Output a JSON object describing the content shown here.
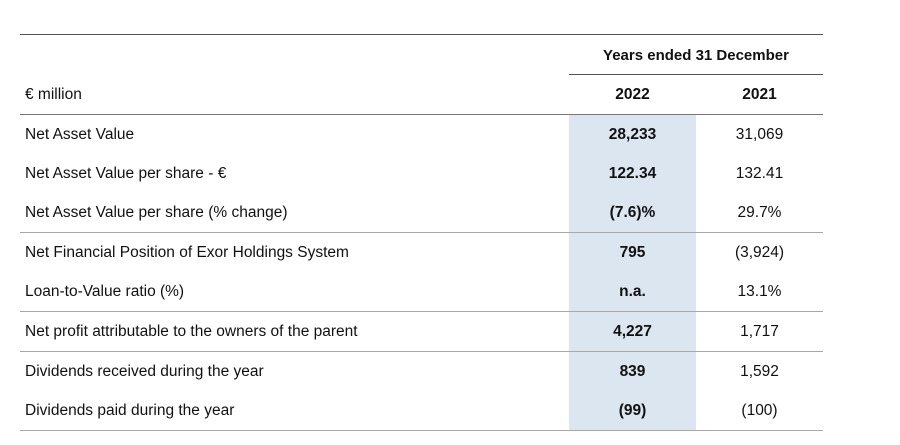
{
  "table": {
    "period_header": "Years ended 31 December",
    "unit_label": "€ million",
    "col_2022": "2022",
    "col_2021": "2021",
    "rows": [
      {
        "label": "Net Asset Value",
        "v2022": "28,233",
        "v2021": "31,069"
      },
      {
        "label": "Net Asset Value per share - €",
        "v2022": "122.34",
        "v2021": "132.41"
      },
      {
        "label": "Net Asset Value per share (% change)",
        "v2022": "(7.6)%",
        "v2021": "29.7%"
      },
      {
        "label": "Net Financial Position of Exor Holdings System",
        "v2022": "795",
        "v2021": "(3,924)"
      },
      {
        "label": "Loan-to-Value ratio (%)",
        "v2022": "n.a.",
        "v2021": "13.1%"
      },
      {
        "label": "Net profit attributable to the owners of the parent",
        "v2022": "4,227",
        "v2021": "1,717"
      },
      {
        "label": "Dividends received during the year",
        "v2022": "839",
        "v2021": "1,592"
      },
      {
        "label": "Dividends paid during the year",
        "v2022": "(99)",
        "v2021": "(100)"
      }
    ],
    "highlight_color": "#dce6f1"
  }
}
